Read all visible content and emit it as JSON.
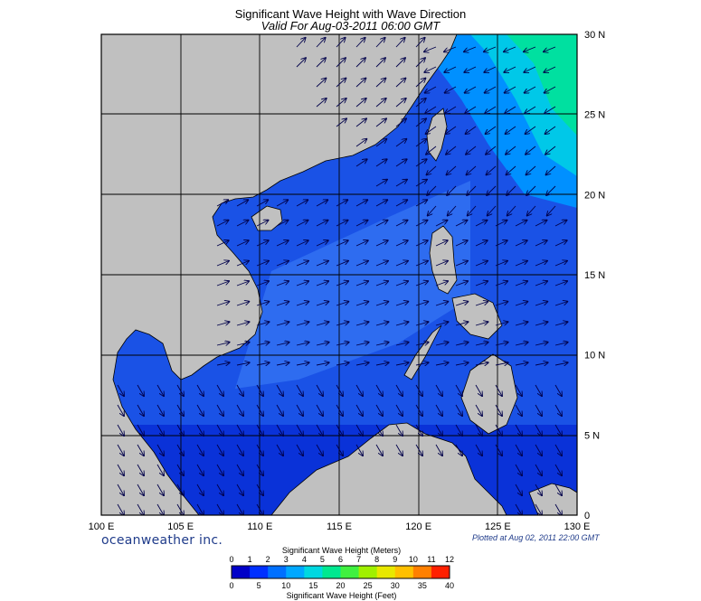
{
  "title": "Significant Wave Height with Wave Direction",
  "subtitle": "Valid For Aug-03-2011 06:00 GMT",
  "branding": "oceanweather inc.",
  "plotted_note": "Plotted at Aug 02, 2011 22:00 GMT",
  "map": {
    "lon_range": [
      100,
      130
    ],
    "lat_range": [
      0,
      30
    ],
    "lon_labels": [
      "100 E",
      "105 E",
      "110 E",
      "115 E",
      "120 E",
      "125 E",
      "130 E"
    ],
    "lat_labels": [
      "30 N",
      "25 N",
      "20 N",
      "15 N",
      "10 N",
      "5 N",
      "0"
    ],
    "land_color": "#c0c0c0",
    "ocean_base_color": "#1a52e6"
  },
  "colorbar": {
    "title_top": "Significant Wave Height (Meters)",
    "title_bottom": "Significant Wave Height (Feet)",
    "meters_labels": [
      "0",
      "1",
      "2",
      "3",
      "4",
      "5",
      "6",
      "7",
      "8",
      "9",
      "10",
      "11",
      "12"
    ],
    "feet_labels": [
      "0",
      "5",
      "10",
      "15",
      "20",
      "25",
      "30",
      "35",
      "40"
    ],
    "colors": [
      "#0000c8",
      "#0030ff",
      "#0070ff",
      "#00a8ff",
      "#00d8e0",
      "#00e890",
      "#40f040",
      "#a0f000",
      "#e8e800",
      "#ffc000",
      "#ff8000",
      "#ff2000"
    ]
  }
}
